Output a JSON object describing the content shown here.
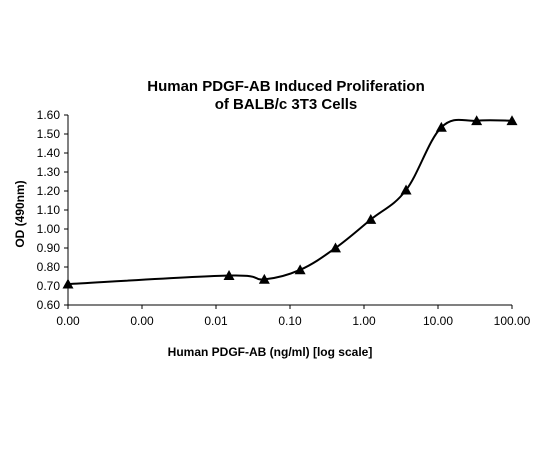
{
  "chart_data": {
    "type": "scatter",
    "title_line1": "Human PDGF-AB Induced Proliferation",
    "title_line2": "of BALB/c 3T3 Cells",
    "xlabel": "Human PDGF-AB (ng/ml) [log scale]",
    "ylabel": "OD (490nm)",
    "x_scale": "log",
    "xlim": [
      0.0001,
      100
    ],
    "ylim": [
      0.6,
      1.6
    ],
    "x_tick_values": [
      0.0001,
      0.001,
      0.01,
      0.1,
      1,
      10,
      100
    ],
    "x_tick_labels": [
      "0.00",
      "0.00",
      "0.01",
      "0.10",
      "1.00",
      "10.00",
      "100.00"
    ],
    "y_tick_values": [
      0.6,
      0.7,
      0.8,
      0.9,
      1.0,
      1.1,
      1.2,
      1.3,
      1.4,
      1.5,
      1.6
    ],
    "y_tick_labels": [
      "0.60",
      "0.70",
      "0.80",
      "0.90",
      "1.00",
      "1.10",
      "1.20",
      "1.30",
      "1.40",
      "1.50",
      "1.60"
    ],
    "grid": false,
    "legend": "none",
    "marker": "triangle",
    "line": "smooth",
    "series": [
      {
        "x": [
          0.0001,
          0.015,
          0.045,
          0.137,
          0.412,
          1.235,
          3.7,
          11.1,
          33.3,
          100
        ],
        "y": [
          0.71,
          0.755,
          0.735,
          0.785,
          0.9,
          1.05,
          1.205,
          1.535,
          1.57,
          1.57
        ]
      }
    ],
    "colors": {
      "line": "#000000",
      "marker": "#000000",
      "axis": "#000000"
    }
  }
}
